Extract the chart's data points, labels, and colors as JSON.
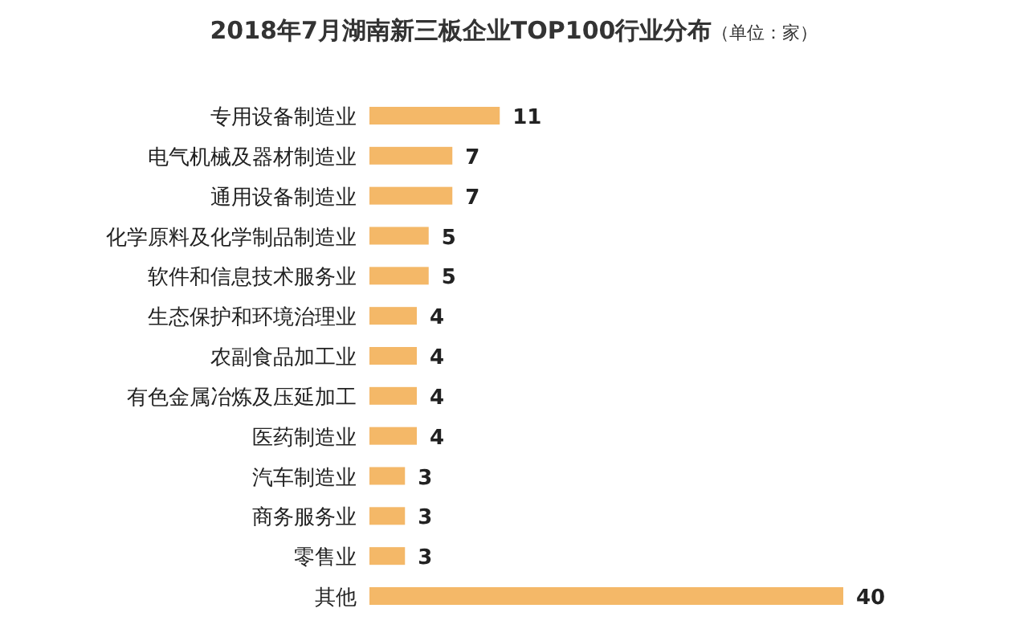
{
  "chart_data": {
    "type": "bar",
    "orientation": "horizontal",
    "title": "2018年7月湖南新三板企业TOP100行业分布",
    "subtitle": "（单位：家）",
    "categories": [
      "专用设备制造业",
      "电气机械及器材制造业",
      "通用设备制造业",
      "化学原料及化学制品制造业",
      "软件和信息技术服务业",
      "生态保护和环境治理业",
      "农副食品加工业",
      "有色金属冶炼及压延加工",
      "医药制造业",
      "汽车制造业",
      "商务服务业",
      "零售业",
      "其他"
    ],
    "values": [
      11,
      7,
      7,
      5,
      5,
      4,
      4,
      4,
      4,
      3,
      3,
      3,
      40
    ],
    "color": "#f4b868",
    "data_labels": true
  }
}
